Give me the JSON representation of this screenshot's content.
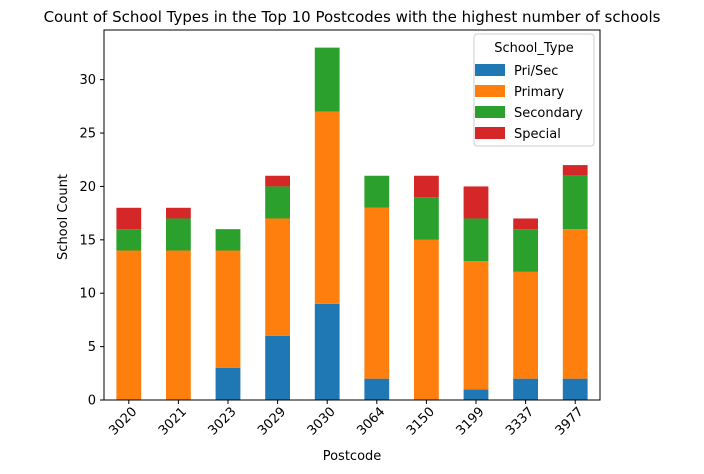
{
  "chart_data": {
    "type": "bar",
    "stacked": true,
    "title": "Count of School Types in the Top 10 Postcodes with the highest number of schools",
    "xlabel": "Postcode",
    "ylabel": "School Count",
    "categories": [
      "3020",
      "3021",
      "3023",
      "3029",
      "3030",
      "3064",
      "3150",
      "3199",
      "3337",
      "3977"
    ],
    "series": [
      {
        "name": "Pri/Sec",
        "color": "#1f77b4",
        "values": [
          0,
          0,
          3,
          6,
          9,
          2,
          0,
          1,
          2,
          2
        ]
      },
      {
        "name": "Primary",
        "color": "#ff7f0e",
        "values": [
          14,
          14,
          11,
          11,
          18,
          16,
          15,
          12,
          10,
          14
        ]
      },
      {
        "name": "Secondary",
        "color": "#2ca02c",
        "values": [
          2,
          3,
          2,
          3,
          6,
          3,
          4,
          4,
          4,
          5
        ]
      },
      {
        "name": "Special",
        "color": "#d62728",
        "values": [
          2,
          1,
          0,
          1,
          0,
          0,
          2,
          3,
          1,
          1
        ]
      }
    ],
    "ylim": [
      0,
      34.65
    ],
    "yticks": [
      0,
      5,
      10,
      15,
      20,
      25,
      30
    ],
    "legend": {
      "title": "School_Type",
      "placement": "top-right"
    },
    "grid": false
  }
}
